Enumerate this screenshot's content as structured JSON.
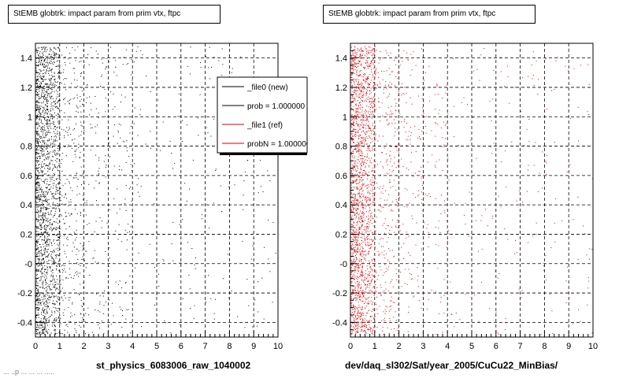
{
  "chart_data": [
    {
      "type": "scatter",
      "title": "StEMB globtrk: impact param from prim vtx, ftpc",
      "xlabel": "st_physics_6083006_raw_1040002",
      "ylabel": "",
      "xlim": [
        0,
        10
      ],
      "ylim": [
        -0.5,
        1.5
      ],
      "xticks": [
        "0",
        "1",
        "2",
        "3",
        "4",
        "5",
        "6",
        "7",
        "8",
        "9",
        "10"
      ],
      "yticks": [
        "-0.4",
        "-0.2",
        "-0",
        "0.2",
        "0.4",
        "0.6",
        "0.8",
        "1",
        "1.2",
        "1.4"
      ],
      "grid": true,
      "marker_color": "#000000",
      "series": [
        {
          "name": "",
          "density_profile": [
            {
              "x_range": [
                0,
                0.5
              ],
              "weight": 0.45
            },
            {
              "x_range": [
                0.5,
                1.0
              ],
              "weight": 0.28
            },
            {
              "x_range": [
                1.0,
                2.0
              ],
              "weight": 0.12
            },
            {
              "x_range": [
                2.0,
                4.0
              ],
              "weight": 0.08
            },
            {
              "x_range": [
                4.0,
                10.0
              ],
              "weight": 0.07
            }
          ]
        }
      ],
      "legend": {
        "placement": "top-right",
        "entries": [
          {
            "label": "_file0 (new)",
            "color": "#000000"
          },
          {
            "label": "prob = 1.000000",
            "color": "#000000"
          },
          {
            "label": "_file1 (ref)",
            "color": "#cc0000"
          },
          {
            "label": "probN = 1.000000",
            "color": "#cc0000"
          }
        ]
      }
    },
    {
      "type": "scatter",
      "title": "StEMB globtrk: impact param from prim vtx, ftpc",
      "xlabel": "dev/daq_sl302/Sat/year_2005/CuCu22_MinBias/",
      "ylabel": "",
      "xlim": [
        0,
        10
      ],
      "ylim": [
        -0.5,
        1.5
      ],
      "xticks": [
        "0",
        "1",
        "2",
        "3",
        "4",
        "5",
        "6",
        "7",
        "8",
        "9",
        "10"
      ],
      "yticks": [
        "-0.4",
        "-0.2",
        "-0",
        "0.2",
        "0.4",
        "0.6",
        "0.8",
        "1",
        "1.2",
        "1.4"
      ],
      "grid": true,
      "marker_color": "#dd0000",
      "series": [
        {
          "name": "",
          "density_profile": [
            {
              "x_range": [
                0,
                0.5
              ],
              "weight": 0.45
            },
            {
              "x_range": [
                0.5,
                1.0
              ],
              "weight": 0.28
            },
            {
              "x_range": [
                1.0,
                2.0
              ],
              "weight": 0.12
            },
            {
              "x_range": [
                2.0,
                4.0
              ],
              "weight": 0.08
            },
            {
              "x_range": [
                4.0,
                10.0
              ],
              "weight": 0.07
            }
          ]
        }
      ]
    }
  ],
  "footer": "... ..p ...  ...  ... ....."
}
